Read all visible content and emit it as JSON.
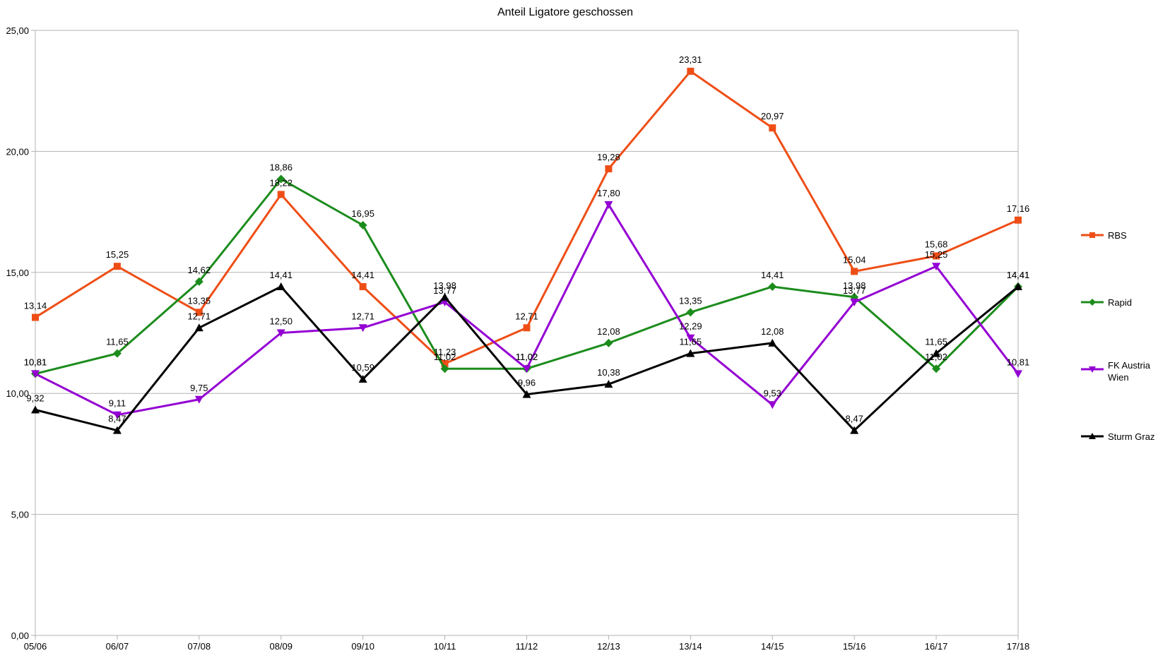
{
  "chart_data": {
    "type": "line",
    "title": "Anteil Ligatore geschossen",
    "xlabel": "",
    "ylabel": "",
    "categories": [
      "05/06",
      "06/07",
      "07/08",
      "08/09",
      "09/10",
      "10/11",
      "11/12",
      "12/13",
      "13/14",
      "14/15",
      "15/16",
      "16/17",
      "17/18"
    ],
    "ylim": [
      0,
      25
    ],
    "yticks": [
      "0,00",
      "5,00",
      "10,00",
      "15,00",
      "20,00",
      "25,00"
    ],
    "grid": "horizontal",
    "legend_position": "right",
    "series": [
      {
        "name": "RBS",
        "color": "#ee4e16",
        "marker": "square",
        "values": [
          13.14,
          15.25,
          13.35,
          18.22,
          14.41,
          11.23,
          12.71,
          19.28,
          23.31,
          20.97,
          15.04,
          15.68,
          17.16
        ],
        "labels": [
          "13,14",
          "15,25",
          "13,35",
          "18,22",
          "14,41",
          "11,23",
          "12,71",
          "19,28",
          "23,31",
          "20,97",
          "15,04",
          "15,68",
          "17,16"
        ]
      },
      {
        "name": "Rapid",
        "color": "#1c8c1c",
        "marker": "diamond",
        "values": [
          10.81,
          11.65,
          14.62,
          18.86,
          16.95,
          11.02,
          11.02,
          12.08,
          13.35,
          14.41,
          13.98,
          11.02,
          14.41
        ],
        "labels": [
          "10,81",
          "11,65",
          "14,62",
          "18,86",
          "16,95",
          "11,02",
          "11,02",
          "12,08",
          "13,35",
          "14,41",
          "13,98",
          "11,02",
          "14,41"
        ]
      },
      {
        "name": "FK Austria Wien",
        "legend_lines": [
          "FK Austria",
          "Wien"
        ],
        "color": "#9400d3",
        "marker": "triangle-down",
        "values": [
          10.81,
          9.11,
          9.75,
          12.5,
          12.71,
          13.77,
          11.02,
          17.8,
          12.29,
          9.53,
          13.77,
          15.25,
          10.81
        ],
        "labels": [
          "10,81",
          "9,11",
          "9,75",
          "12,50",
          "12,71",
          "13,77",
          "11,02",
          "17,80",
          "12,29",
          "9,53",
          "13,77",
          "15,25",
          "10,81"
        ]
      },
      {
        "name": "Sturm Graz",
        "color": "#000000",
        "marker": "triangle-up",
        "values": [
          9.32,
          8.47,
          12.71,
          14.41,
          10.59,
          13.98,
          9.96,
          10.38,
          11.65,
          12.08,
          8.47,
          11.65,
          14.41
        ],
        "labels": [
          "9,32",
          "8,47",
          "12,71",
          "14,41",
          "10,59",
          "13,98",
          "9,96",
          "10,38",
          "11,65",
          "12,08",
          "8,47",
          "11,65",
          "14,41"
        ]
      }
    ]
  }
}
